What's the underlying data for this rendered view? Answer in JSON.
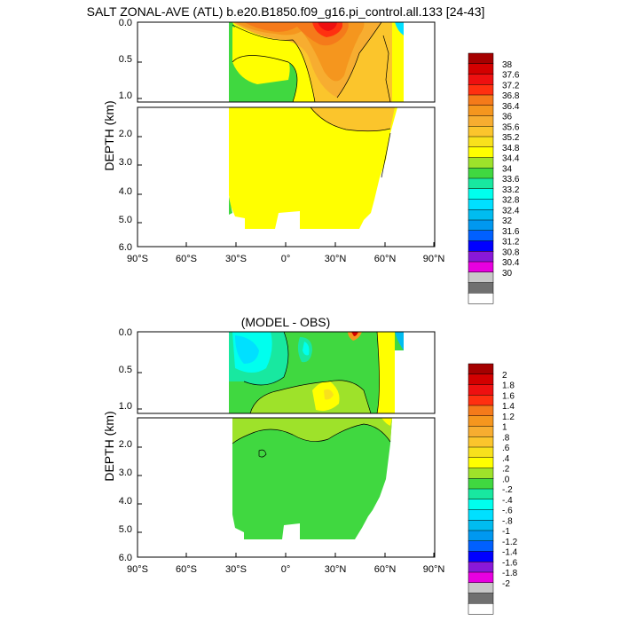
{
  "chart_data": [
    {
      "type": "heatmap",
      "title": "SALT ZONAL-AVE (ATL) b.e20.B1850.f09_g16.pi_control.all.133 [24-43]",
      "ylabel": "DEPTH (km)",
      "xlabel": "",
      "xlim": [
        -90,
        90
      ],
      "ylim_upper_km": [
        0.0,
        1.1
      ],
      "ylim_lower_km": [
        1.1,
        6.0
      ],
      "x_ticks": [
        "90°S",
        "60°S",
        "30°S",
        "0°",
        "30°N",
        "60°N",
        "90°N"
      ],
      "y_ticks_upper": [
        "0.0",
        "0.5",
        "1.0"
      ],
      "y_ticks_lower": [
        "2.0",
        "3.0",
        "4.0",
        "5.0",
        "6.0"
      ],
      "colorbar": {
        "labels": [
          "38",
          "37.6",
          "37.2",
          "36.8",
          "36.4",
          "36",
          "35.6",
          "35.2",
          "34.8",
          "34.4",
          "34",
          "33.6",
          "33.2",
          "32.8",
          "32.4",
          "32",
          "31.6",
          "31.2",
          "30.8",
          "30.4",
          "30"
        ],
        "colors": [
          "#a50000",
          "#d30000",
          "#ee1010",
          "#ff3010",
          "#f57a1a",
          "#f5961e",
          "#f7ad30",
          "#fbc52c",
          "#f8e11c",
          "#ffff00",
          "#9ee22a",
          "#40d840",
          "#18e8a0",
          "#00ffee",
          "#00e0ff",
          "#00bcf0",
          "#0098f0",
          "#0060ff",
          "#0000ff",
          "#8a18d8",
          "#e800e0",
          "#c8c8c8",
          "#707070",
          "#ffffff"
        ]
      },
      "field_description_regions": [
        {
          "lat_range": [
            -35,
            65
          ],
          "depth_km": [
            1.1,
            5.3
          ],
          "value_range": [
            34.8,
            35.2
          ]
        },
        {
          "lat_range": [
            15,
            65
          ],
          "depth_km": [
            0.0,
            1.1
          ],
          "value_range": [
            35.2,
            36.0
          ]
        },
        {
          "lat_range": [
            20,
            32
          ],
          "depth_km": [
            0.0,
            0.15
          ],
          "value_range": [
            36.8,
            37.6
          ]
        },
        {
          "lat_range": [
            -35,
            -20
          ],
          "depth_km": [
            0.1,
            1.1
          ],
          "value_range": [
            34.4,
            34.8
          ]
        }
      ]
    },
    {
      "type": "heatmap",
      "title": "(MODEL - OBS)",
      "ylabel": "DEPTH (km)",
      "xlabel": "",
      "xlim": [
        -90,
        90
      ],
      "ylim_upper_km": [
        0.0,
        1.1
      ],
      "ylim_lower_km": [
        1.1,
        6.0
      ],
      "x_ticks": [
        "90°S",
        "60°S",
        "30°S",
        "0°",
        "30°N",
        "60°N",
        "90°N"
      ],
      "y_ticks_upper": [
        "0.0",
        "0.5",
        "1.0"
      ],
      "y_ticks_lower": [
        "2.0",
        "3.0",
        "4.0",
        "5.0",
        "6.0"
      ],
      "colorbar": {
        "labels": [
          "2",
          "1.8",
          "1.6",
          "1.4",
          "1.2",
          "1",
          ".8",
          ".6",
          ".4",
          ".2",
          ".0",
          "-.2",
          "-.4",
          "-.6",
          "-.8",
          "-1",
          "-1.2",
          "-1.4",
          "-1.6",
          "-1.8",
          "-2"
        ],
        "colors": [
          "#a50000",
          "#d30000",
          "#ee1010",
          "#ff3010",
          "#f57a1a",
          "#f5961e",
          "#f7ad30",
          "#fbc52c",
          "#f8e11c",
          "#ffff00",
          "#9ee22a",
          "#40d840",
          "#18e8a0",
          "#00ffee",
          "#00e0ff",
          "#00bcf0",
          "#0098f0",
          "#0060ff",
          "#0000ff",
          "#8a18d8",
          "#e800e0",
          "#c8c8c8",
          "#707070",
          "#ffffff"
        ]
      },
      "field_description_regions": [
        {
          "lat_range": [
            -35,
            65
          ],
          "depth_km": [
            1.1,
            5.3
          ],
          "value_range": [
            0.0,
            0.2
          ]
        },
        {
          "lat_range": [
            -35,
            -10
          ],
          "depth_km": [
            0.0,
            0.5
          ],
          "value_range": [
            -0.4,
            0.0
          ]
        },
        {
          "lat_range": [
            12,
            26
          ],
          "depth_km": [
            0.55,
            0.95
          ],
          "value_range": [
            0.4,
            0.6
          ]
        },
        {
          "lat_range": [
            52,
            60
          ],
          "depth_km": [
            0.05,
            1.1
          ],
          "value_range": [
            0.4,
            0.6
          ]
        }
      ]
    }
  ]
}
